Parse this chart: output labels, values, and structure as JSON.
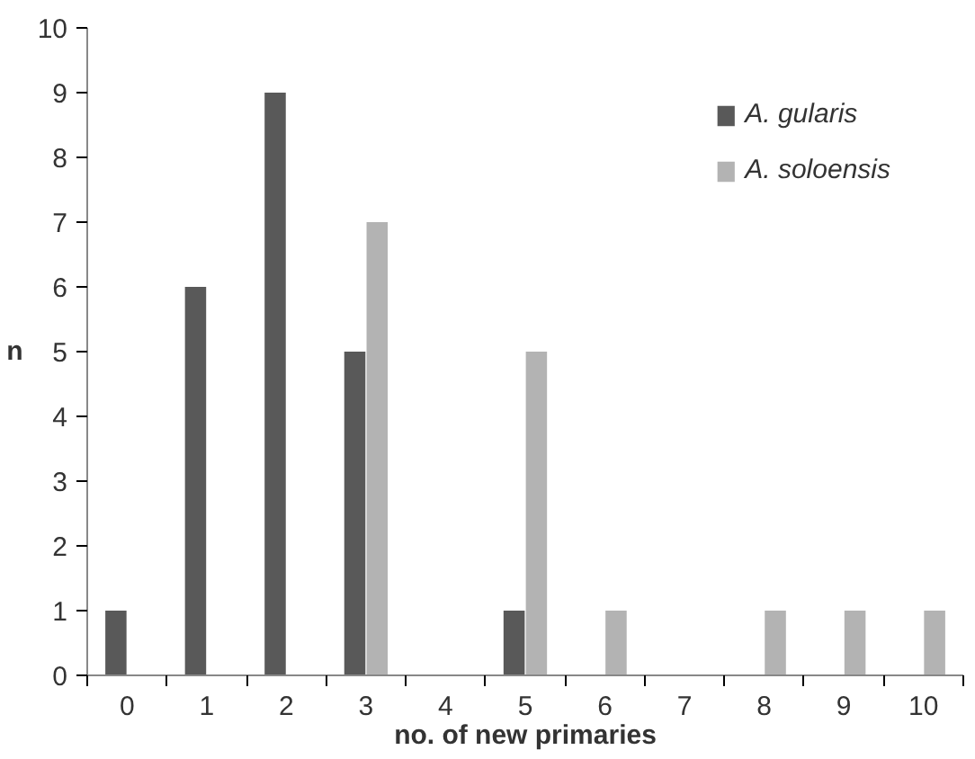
{
  "chart_data": {
    "type": "bar",
    "xlabel": "no. of new primaries",
    "ylabel": "n",
    "categories": [
      "0",
      "1",
      "2",
      "3",
      "4",
      "5",
      "6",
      "7",
      "8",
      "9",
      "10"
    ],
    "series": [
      {
        "name": "A. gularis",
        "color": "#595959",
        "values": [
          1,
          6,
          9,
          5,
          0,
          1,
          0,
          0,
          0,
          0,
          0
        ]
      },
      {
        "name": "A. soloensis",
        "color": "#b3b3b3",
        "values": [
          0,
          0,
          0,
          7,
          0,
          5,
          1,
          0,
          1,
          1,
          1
        ]
      }
    ],
    "ylim": [
      0,
      10
    ],
    "yticks": [
      0,
      1,
      2,
      3,
      4,
      5,
      6,
      7,
      8,
      9,
      10
    ],
    "grid": false,
    "legend": "top right"
  }
}
